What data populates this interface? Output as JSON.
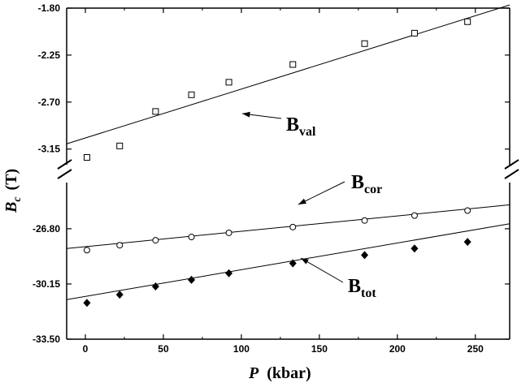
{
  "chart_data": {
    "type": "scatter",
    "xlabel": "P",
    "xlabel_unit": "(kbar)",
    "ylabel": "B",
    "ylabel_sub": "c",
    "ylabel_unit": "(T)",
    "xlim": [
      -12,
      272
    ],
    "x_ticks": [
      0,
      50,
      100,
      150,
      200,
      250
    ],
    "x_tick_labels": [
      "0",
      "50",
      "100",
      "150",
      "200",
      "250"
    ],
    "y_axis_break": true,
    "y_segments": [
      {
        "name": "upper",
        "ylim": [
          -3.3,
          -1.8
        ],
        "ticks": [
          -1.8,
          -2.25,
          -2.7,
          -3.15
        ],
        "tick_labels": [
          "-1.80",
          "-2.25",
          "-2.70",
          "-3.15"
        ]
      },
      {
        "name": "lower",
        "ylim": [
          -33.5,
          -24.0
        ],
        "ticks": [
          -26.8,
          -30.15,
          -33.5
        ],
        "tick_labels": [
          "-26.80",
          "-30.15",
          "-33.50"
        ]
      }
    ],
    "grid": false,
    "series": [
      {
        "name": "B_val",
        "label_main": "B",
        "label_sub": "val",
        "segment": "upper",
        "marker": "open-square",
        "x": [
          1,
          22,
          45,
          68,
          92,
          133,
          179,
          211,
          245
        ],
        "y": [
          -3.23,
          -3.12,
          -2.79,
          -2.63,
          -2.51,
          -2.34,
          -2.14,
          -2.04,
          -1.93
        ],
        "fit": {
          "x": [
            -12,
            272
          ],
          "y": [
            -3.1,
            -1.77
          ]
        }
      },
      {
        "name": "B_cor",
        "label_main": "B",
        "label_sub": "cor",
        "segment": "lower",
        "marker": "open-circle",
        "x": [
          1,
          22,
          45,
          68,
          92,
          133,
          179,
          211,
          245
        ],
        "y": [
          -28.1,
          -27.8,
          -27.5,
          -27.3,
          -27.05,
          -26.7,
          -26.3,
          -26.0,
          -25.7
        ],
        "fit": {
          "x": [
            -12,
            272
          ],
          "y": [
            -28.0,
            -25.35
          ]
        }
      },
      {
        "name": "B_tot",
        "label_main": "B",
        "label_sub": "tot",
        "segment": "lower",
        "marker": "filled-diamond",
        "x": [
          1,
          22,
          45,
          68,
          92,
          133,
          179,
          211,
          245
        ],
        "y": [
          -31.3,
          -30.8,
          -30.3,
          -29.9,
          -29.5,
          -28.9,
          -28.4,
          -28.0,
          -27.6
        ],
        "fit": {
          "x": [
            -12,
            272
          ],
          "y": [
            -31.1,
            -26.5
          ]
        }
      }
    ]
  }
}
